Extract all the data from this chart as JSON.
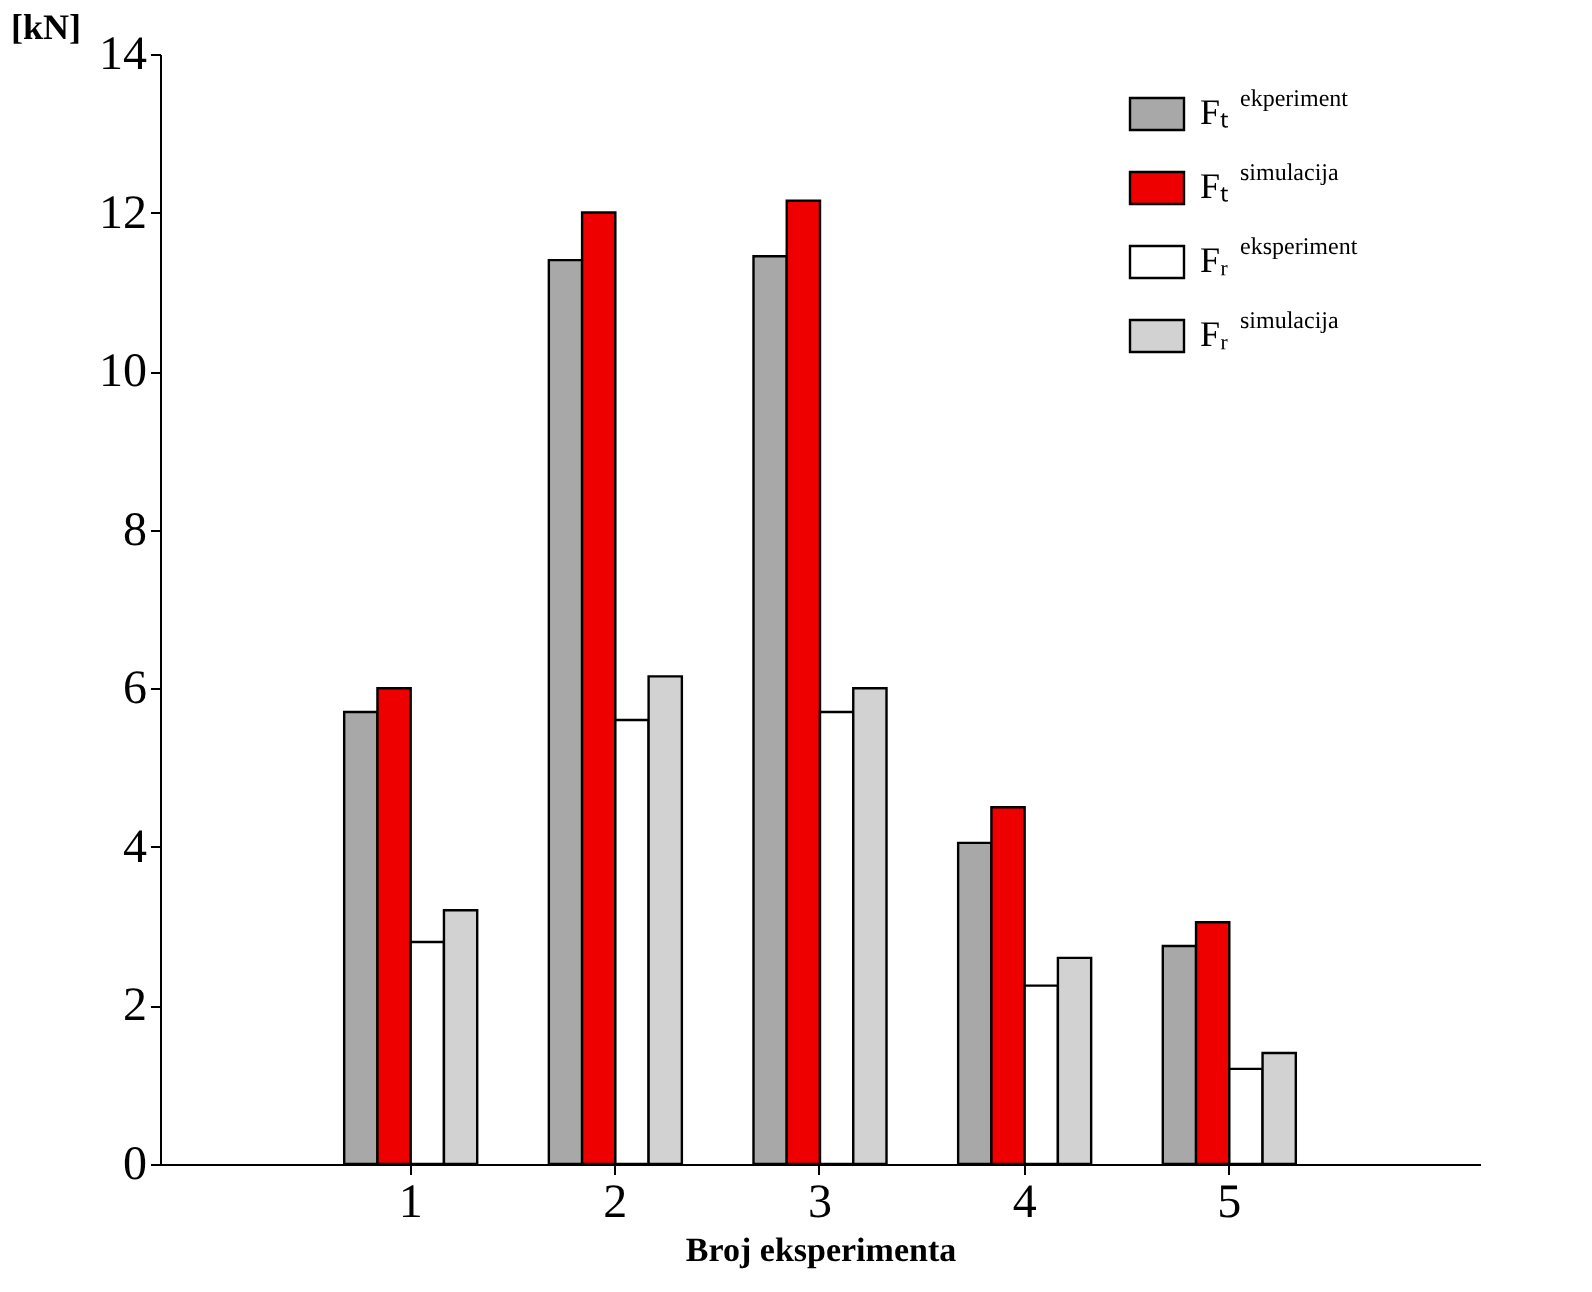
{
  "chart_data": {
    "type": "bar",
    "xlabel": "Broj eksperimenta",
    "ylabel": "[kN]",
    "categories": [
      "1",
      "2",
      "3",
      "4",
      "5"
    ],
    "series": [
      {
        "name": "Fₜ$^{ekperiment}$",
        "color": "#a8a8a8",
        "values": [
          5.7,
          11.4,
          11.45,
          4.05,
          2.75
        ]
      },
      {
        "name": "Fₜ$^{simulacija}$",
        "color": "#ee0000",
        "values": [
          6.0,
          12.0,
          12.15,
          4.5,
          3.05
        ]
      },
      {
        "name": "Fᵣ$^{eksperiment}$",
        "color": "#ffffff",
        "values": [
          2.8,
          5.6,
          5.7,
          2.25,
          1.2
        ]
      },
      {
        "name": "Fᵣ$^{simulacija}$",
        "color": "#d2d2d2",
        "values": [
          3.2,
          6.15,
          6.0,
          2.6,
          1.4
        ]
      }
    ],
    "ylim": [
      0,
      14
    ],
    "yticks": [
      0,
      2,
      4,
      6,
      8,
      10,
      12,
      14
    ],
    "grid": false,
    "legend": "top right"
  }
}
